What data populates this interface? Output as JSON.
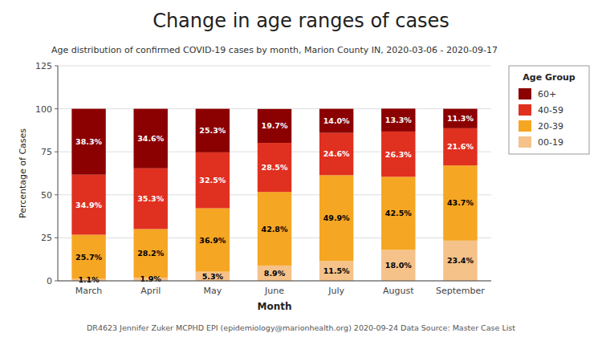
{
  "chart_data": {
    "type": "bar",
    "stacked": true,
    "title": "Change in age ranges of cases",
    "subtitle": "Age distribution of confirmed COVID-19 cases by month, Marion County IN, 2020-03-06 - 2020-09-17",
    "annotations": [
      "DR4623 Jennifer Zuker MCPHD EPI (epidemiology@marionhealth.org) 2020-09-24 Data Source: Master Case List"
    ],
    "x_label": "Month",
    "y_label": "Percentage of Cases",
    "legend_title": "Age Group",
    "legend": "right",
    "grid": true,
    "data_labels": true,
    "categories": [
      "March",
      "April",
      "May",
      "June",
      "July",
      "August",
      "September"
    ],
    "series": [
      {
        "name": "00-19",
        "color": "#f5c28a",
        "values": [
          1.1,
          1.9,
          5.3,
          8.9,
          11.5,
          18.0,
          23.4
        ],
        "value_labels": [
          "1.1%",
          "1.9%",
          "5.3%",
          "8.9%",
          "11.5%",
          "18.0%",
          "23.4%"
        ]
      },
      {
        "name": "20-39",
        "color": "#f5a623",
        "values": [
          25.7,
          28.2,
          36.9,
          42.8,
          49.9,
          42.5,
          43.7
        ],
        "value_labels": [
          "25.7%",
          "28.2%",
          "36.9%",
          "42.8%",
          "49.9%",
          "42.5%",
          "43.7%"
        ]
      },
      {
        "name": "40-59",
        "color": "#e03020",
        "values": [
          34.9,
          35.3,
          32.5,
          28.5,
          24.6,
          26.3,
          21.6
        ],
        "value_labels": [
          "34.9%",
          "35.3%",
          "32.5%",
          "28.5%",
          "24.6%",
          "26.3%",
          "21.6%"
        ]
      },
      {
        "name": "60+",
        "color": "#8b0000",
        "values": [
          38.3,
          34.6,
          25.3,
          19.7,
          14.0,
          13.3,
          11.3
        ],
        "value_labels": [
          "38.3%",
          "34.6%",
          "25.3%",
          "19.7%",
          "14.0%",
          "13.3%",
          "11.3%"
        ]
      }
    ],
    "ylim": [
      0,
      125
    ],
    "yticks": [
      0,
      25,
      50,
      75,
      100,
      125
    ]
  }
}
